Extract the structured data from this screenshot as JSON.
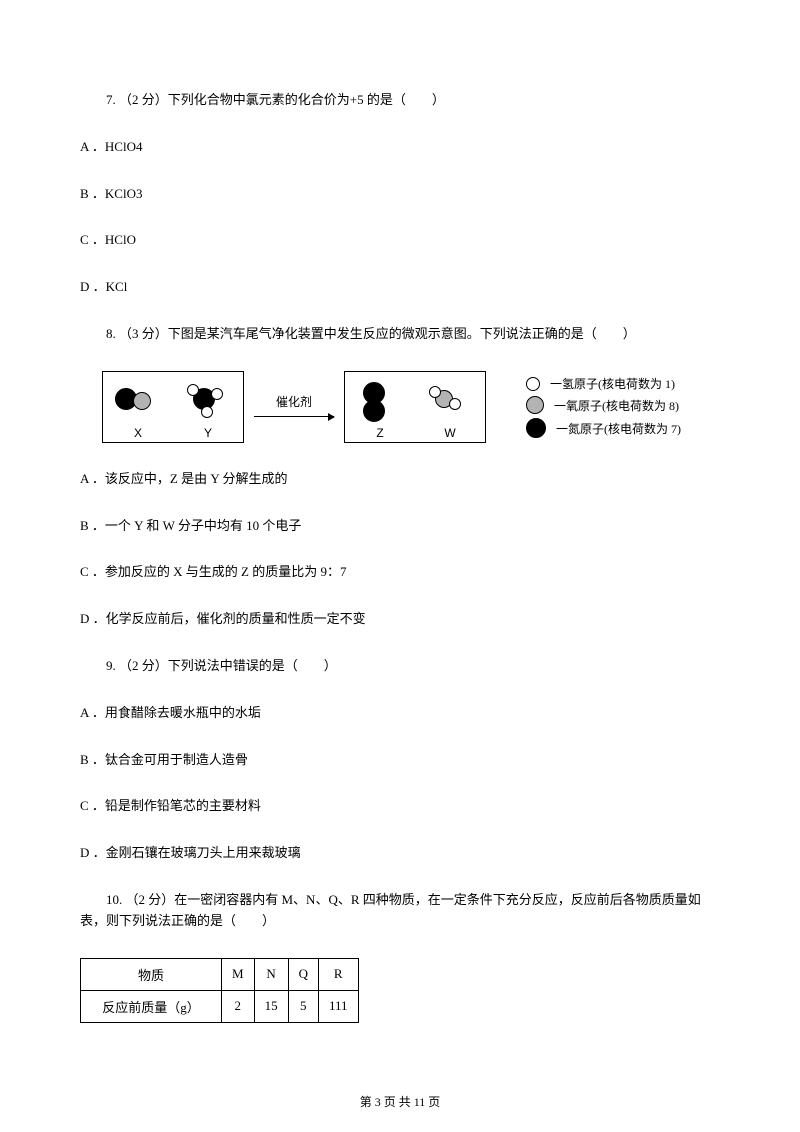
{
  "q7": {
    "text": "7. （2 分）下列化合物中氯元素的化合价为+5 的是（　　）",
    "opts": {
      "A": "A ．HClO4",
      "B": "B ．KClO3",
      "C": "C ．HClO",
      "D": "D ．KCl"
    }
  },
  "q8": {
    "text": "8. （3 分）下图是某汽车尾气净化装置中发生反应的微观示意图。下列说法正确的是（　　）",
    "opts": {
      "A": "A ．该反应中，Z 是由 Y 分解生成的",
      "B": "B ．一个 Y 和 W 分子中均有 10 个电子",
      "C": "C ．参加反应的 X 与生成的 Z 的质量比为 9：7",
      "D": "D ．化学反应前后，催化剂的质量和性质一定不变"
    }
  },
  "diagram": {
    "labels": {
      "X": "X",
      "Y": "Y",
      "Z": "Z",
      "W": "W"
    },
    "catalyst": "催化剂",
    "legend": [
      {
        "label": "一氢原子(核电荷数为 1)",
        "fill": "#ffffff",
        "border": "#000000",
        "size": 14
      },
      {
        "label": "一氧原子(核电荷数为 8)",
        "fill": "#b3b3b3",
        "border": "#000000",
        "size": 18
      },
      {
        "label": "一氮原子(核电荷数为 7)",
        "fill": "#000000",
        "border": "#000000",
        "size": 20
      }
    ],
    "atoms": {
      "h": {
        "fill": "#ffffff",
        "border": "#000000",
        "size": 12
      },
      "o": {
        "fill": "#b3b3b3",
        "border": "#000000",
        "size": 18
      },
      "n": {
        "fill": "#000000",
        "border": "#000000",
        "size": 22
      }
    }
  },
  "q9": {
    "text": "9. （2 分）下列说法中错误的是（　　）",
    "opts": {
      "A": "A ．用食醋除去暖水瓶中的水垢",
      "B": "B ．钛合金可用于制造人造骨",
      "C": "C ．铅是制作铅笔芯的主要材料",
      "D": "D ．金刚石镶在玻璃刀头上用来裁玻璃"
    }
  },
  "q10": {
    "text": "10. （2 分）在一密闭容器内有 M、N、Q、R 四种物质，在一定条件下充分反应，反应前后各物质质量如表，则下列说法正确的是（　　）"
  },
  "table": {
    "headers": [
      "物质",
      "M",
      "N",
      "Q",
      "R"
    ],
    "rows": [
      [
        "反应前质量（g）",
        "2",
        "15",
        "5",
        "111"
      ]
    ]
  },
  "footer": "第 3 页 共 11 页"
}
